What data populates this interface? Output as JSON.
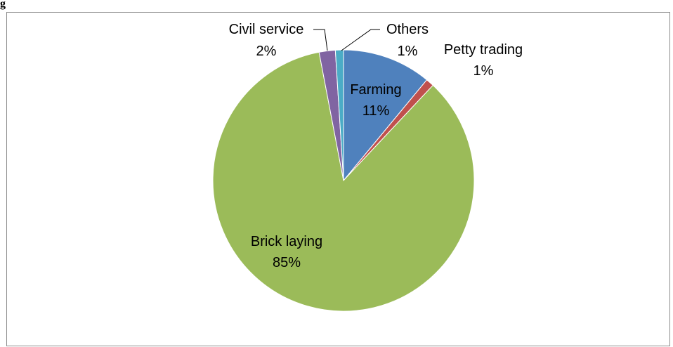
{
  "figure": {
    "caption": "g"
  },
  "chart_data": {
    "type": "pie",
    "title": "",
    "slices": [
      {
        "label": "Farming",
        "value": 11,
        "value_label": "11%",
        "color": "#4f81bd"
      },
      {
        "label": "Petty trading",
        "value": 1,
        "value_label": "1%",
        "color": "#c0504d"
      },
      {
        "label": "Brick laying",
        "value": 85,
        "value_label": "85%",
        "color": "#9bbb59"
      },
      {
        "label": "Civil service",
        "value": 2,
        "value_label": "2%",
        "color": "#8064a2"
      },
      {
        "label": "Others",
        "value": 1,
        "value_label": "1%",
        "color": "#4bacc6"
      }
    ],
    "legend": "none",
    "data_labels": "on"
  }
}
